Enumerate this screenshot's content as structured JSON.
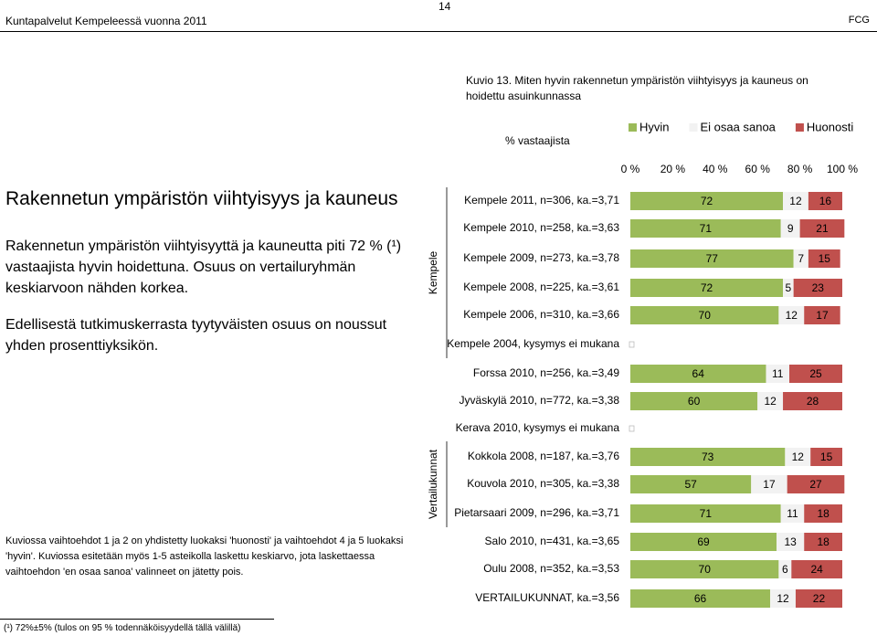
{
  "header": {
    "left": "Kuntapalvelut Kempeleessä vuonna 2011",
    "page": "14",
    "right": "FCG"
  },
  "heading": "Rakennetun ympäristön viihtyisyys ja kauneus",
  "paragraphs": [
    "Rakennetun ympäristön viihtyisyyttä ja kauneutta piti 72 % (¹) vastaajista hyvin hoidettuna. Osuus on vertailuryhmän keskiarvoon nähden korkea.",
    "Edellisestä tutkimuskerrasta tyytyväisten osuus on noussut yhden prosenttiyksikön."
  ],
  "note": "Kuviossa vaihtoehdot 1 ja 2 on yhdistetty luokaksi 'huonosti' ja vaihtoehdot 4 ja 5 luokaksi 'hyvin'. Kuviossa esitetään myös 1-5 asteikolla laskettu keskiarvo, jota laskettaessa vaihtoehdon 'en osaa sanoa' valinneet on jätetty pois.",
  "footnote": "(¹) 72%±5% (tulos on 95 % todennäköisyydellä tällä välillä)",
  "chart_data": {
    "type": "bar",
    "orientation": "horizontal",
    "stacked": true,
    "title": "Kuvio 13. Miten hyvin rakennetun ympäristön viihtyisyys ja kauneus on hoidettu asuinkunnassa",
    "x_label": "% vastaajista",
    "groups": [
      "Kempele",
      "Vertailukunnat"
    ],
    "categories": [
      "Kempele 2011, n=306, ka.=3,71",
      "Kempele 2010, n=258, ka.=3,63",
      "Kempele 2009, n=273, ka.=3,78",
      "Kempele 2008, n=225, ka.=3,61",
      "Kempele 2006, n=310, ka.=3,66",
      "Kempele 2004, kysymys ei mukana",
      "Forssa 2010, n=256, ka.=3,49",
      "Jyväskylä 2010, n=772, ka.=3,38",
      "Kerava 2010, kysymys ei mukana",
      "Kokkola 2008, n=187, ka.=3,76",
      "Kouvola 2010, n=305, ka.=3,38",
      "Pietarsaari 2009, n=296, ka.=3,71",
      "Salo 2010, n=431, ka.=3,65",
      "Oulu 2008, n=352, ka.=3,53",
      "VERTAILUKUNNAT, ka.=3,56"
    ],
    "series": [
      {
        "name": "Hyvin",
        "color": "#9bbb59",
        "label_color": "#ffffff",
        "values": [
          72,
          71,
          77,
          72,
          70,
          null,
          64,
          60,
          null,
          73,
          57,
          71,
          69,
          70,
          66
        ]
      },
      {
        "name": "Ei osaa sanoa",
        "color": "#f2f2f2",
        "label_color": "#000000",
        "values": [
          12,
          9,
          7,
          5,
          12,
          null,
          11,
          12,
          null,
          12,
          17,
          11,
          13,
          6,
          12
        ]
      },
      {
        "name": "Huonosti",
        "color": "#c0504d",
        "label_color": "#ffffff",
        "values": [
          16,
          21,
          15,
          23,
          17,
          null,
          25,
          28,
          null,
          15,
          27,
          18,
          18,
          24,
          22
        ]
      }
    ],
    "xlim": [
      0,
      100
    ],
    "xticks": [
      {
        "value": 0,
        "label": "0 %"
      },
      {
        "value": 20,
        "label": "20 %"
      },
      {
        "value": 40,
        "label": "40 %"
      },
      {
        "value": 60,
        "label": "60 %"
      },
      {
        "value": 80,
        "label": "80 %"
      },
      {
        "value": 100,
        "label": "100 %"
      }
    ]
  }
}
